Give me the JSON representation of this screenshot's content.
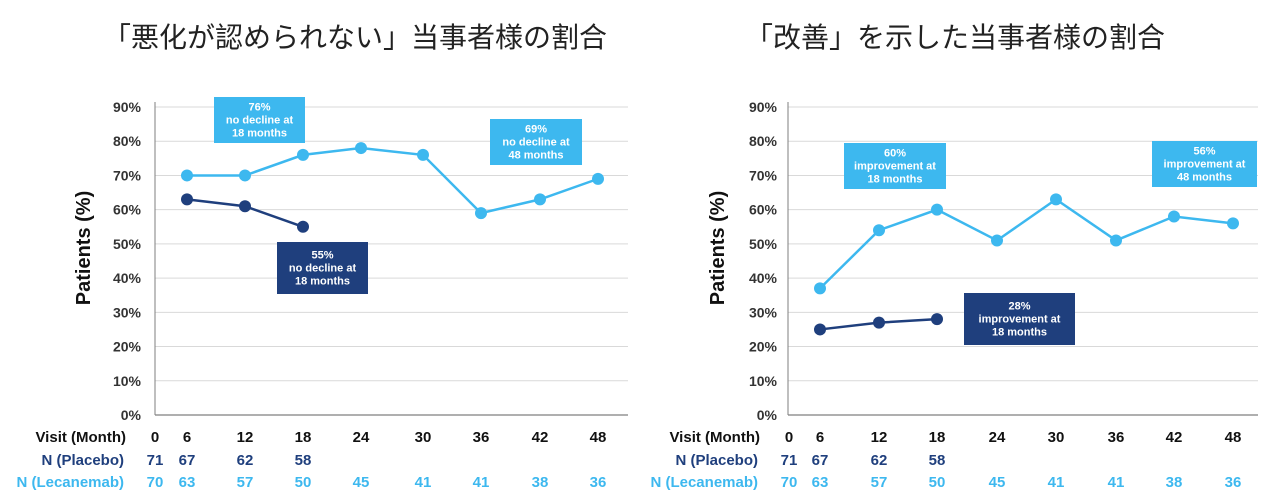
{
  "colors": {
    "placebo": "#1f3f7d",
    "lecanemab": "#3db8ef",
    "grid": "#d9d9d9",
    "axis": "#7f7f7f"
  },
  "chart_data": [
    {
      "type": "line",
      "title": "「悪化が認められない」当事者様の割合",
      "ylabel": "Patients (%)",
      "xlabel": "Visit (Month)",
      "x": [
        0,
        6,
        12,
        18,
        24,
        30,
        36,
        42,
        48
      ],
      "ylim": [
        0,
        90
      ],
      "yticks": [
        "0%",
        "10%",
        "20%",
        "30%",
        "40%",
        "50%",
        "60%",
        "70%",
        "80%",
        "90%"
      ],
      "series": [
        {
          "name": "Placebo",
          "x": [
            6,
            12,
            18
          ],
          "values": [
            63,
            61,
            55
          ]
        },
        {
          "name": "Lecanemab",
          "x": [
            6,
            12,
            18,
            24,
            30,
            36,
            42,
            48
          ],
          "values": [
            70,
            70,
            76,
            78,
            76,
            59,
            63,
            69
          ]
        }
      ],
      "n_rows": [
        {
          "label": "N (Placebo)",
          "values": [
            "71",
            "67",
            "62",
            "58",
            "",
            "",
            "",
            "",
            ""
          ]
        },
        {
          "label": "N (Lecanemab)",
          "values": [
            "70",
            "63",
            "57",
            "50",
            "45",
            "41",
            "41",
            "38",
            "36"
          ]
        }
      ],
      "annotations": [
        {
          "series": "lecanemab",
          "month": 18,
          "value": 76,
          "lines": [
            "76%",
            "no decline at",
            "18 months"
          ]
        },
        {
          "series": "lecanemab",
          "month": 48,
          "value": 69,
          "lines": [
            "69%",
            "no decline at",
            "48 months"
          ]
        },
        {
          "series": "placebo",
          "month": 18,
          "value": 55,
          "lines": [
            "55%",
            "no decline at",
            "18 months"
          ]
        }
      ]
    },
    {
      "type": "line",
      "title": "「改善」を示した当事者様の割合",
      "ylabel": "Patients (%)",
      "xlabel": "Visit (Month)",
      "x": [
        0,
        6,
        12,
        18,
        24,
        30,
        36,
        42,
        48
      ],
      "ylim": [
        0,
        90
      ],
      "yticks": [
        "0%",
        "10%",
        "20%",
        "30%",
        "40%",
        "50%",
        "60%",
        "70%",
        "80%",
        "90%"
      ],
      "series": [
        {
          "name": "Placebo",
          "x": [
            6,
            12,
            18
          ],
          "values": [
            25,
            27,
            28
          ]
        },
        {
          "name": "Lecanemab",
          "x": [
            6,
            12,
            18,
            24,
            30,
            36,
            42,
            48
          ],
          "values": [
            37,
            54,
            60,
            51,
            63,
            51,
            58,
            56
          ]
        }
      ],
      "n_rows": [
        {
          "label": "N (Placebo)",
          "values": [
            "71",
            "67",
            "62",
            "58",
            "",
            "",
            "",
            "",
            ""
          ]
        },
        {
          "label": "N (Lecanemab)",
          "values": [
            "70",
            "63",
            "57",
            "50",
            "45",
            "41",
            "41",
            "38",
            "36"
          ]
        }
      ],
      "annotations": [
        {
          "series": "lecanemab",
          "month": 18,
          "value": 60,
          "lines": [
            "60%",
            "improvement at",
            "18 months"
          ]
        },
        {
          "series": "lecanemab",
          "month": 48,
          "value": 56,
          "lines": [
            "56%",
            "improvement at",
            "48 months"
          ]
        },
        {
          "series": "placebo",
          "month": 18,
          "value": 28,
          "lines": [
            "28%",
            "improvement at",
            "18 months"
          ]
        }
      ]
    }
  ]
}
